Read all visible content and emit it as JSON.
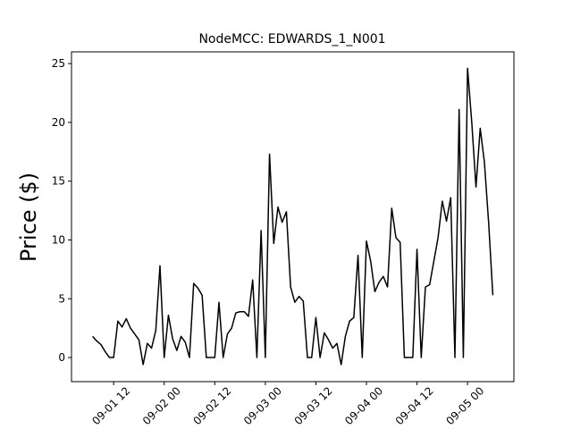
{
  "chart_data": {
    "type": "line",
    "title": "NodeMCC: EDWARDS_1_N001",
    "y_label": "Price ($)",
    "color": "#000000",
    "x": [
      "09-01 07",
      "09-01 08",
      "09-01 09",
      "09-01 10",
      "09-01 11",
      "09-01 12",
      "09-01 13",
      "09-01 14",
      "09-01 15",
      "09-01 16",
      "09-01 17",
      "09-01 18",
      "09-01 19",
      "09-01 20",
      "09-01 21",
      "09-01 22",
      "09-01 23",
      "09-02 00",
      "09-02 01",
      "09-02 02",
      "09-02 03",
      "09-02 04",
      "09-02 05",
      "09-02 06",
      "09-02 07",
      "09-02 08",
      "09-02 09",
      "09-02 10",
      "09-02 11",
      "09-02 12",
      "09-02 13",
      "09-02 14",
      "09-02 15",
      "09-02 16",
      "09-02 17",
      "09-02 18",
      "09-02 19",
      "09-02 20",
      "09-02 21",
      "09-02 22",
      "09-02 23",
      "09-03 00",
      "09-03 01",
      "09-03 02",
      "09-03 03",
      "09-03 04",
      "09-03 05",
      "09-03 06",
      "09-03 07",
      "09-03 08",
      "09-03 09",
      "09-03 10",
      "09-03 11",
      "09-03 12",
      "09-03 13",
      "09-03 14",
      "09-03 15",
      "09-03 16",
      "09-03 17",
      "09-03 18",
      "09-03 19",
      "09-03 20",
      "09-03 21",
      "09-03 22",
      "09-03 23",
      "09-04 00",
      "09-04 01",
      "09-04 02",
      "09-04 03",
      "09-04 04",
      "09-04 05",
      "09-04 06",
      "09-04 07",
      "09-04 08",
      "09-04 09",
      "09-04 10",
      "09-04 11",
      "09-04 12",
      "09-04 13",
      "09-04 14",
      "09-04 15",
      "09-04 16",
      "09-04 17",
      "09-04 18",
      "09-04 19",
      "09-04 20",
      "09-04 21",
      "09-04 22",
      "09-04 23",
      "09-05 00",
      "09-05 01",
      "09-05 02",
      "09-05 03",
      "09-05 04",
      "09-05 05",
      "09-05 06"
    ],
    "values": [
      1.8,
      1.4,
      1.1,
      0.5,
      0,
      0,
      3.1,
      2.6,
      3.3,
      2.5,
      2.0,
      1.5,
      -0.6,
      1.2,
      0.8,
      2.3,
      7.8,
      0,
      3.6,
      1.6,
      0.6,
      1.8,
      1.3,
      0,
      6.3,
      5.9,
      5.3,
      0,
      0,
      0,
      4.7,
      0,
      2.0,
      2.5,
      3.8,
      3.9,
      3.9,
      3.5,
      6.6,
      0,
      10.8,
      0,
      17.3,
      9.7,
      12.8,
      11.5,
      12.4,
      6.0,
      4.7,
      5.2,
      4.8,
      0,
      0,
      3.4,
      0,
      2.1,
      1.5,
      0.8,
      1.2,
      -0.6,
      1.8,
      3.1,
      3.4,
      8.7,
      0,
      9.9,
      8.2,
      5.6,
      6.4,
      6.9,
      6.0,
      12.7,
      10.2,
      9.8,
      0,
      0,
      0,
      9.2,
      0,
      6.0,
      6.2,
      8.2,
      10.2,
      13.3,
      11.6,
      13.6,
      0,
      21.1,
      0,
      24.6,
      20.0,
      14.5,
      19.5,
      16.6,
      11.5,
      5.3
    ],
    "xlim": [
      "09-01 02",
      "09-05 11"
    ],
    "xticks": [
      "09-01 12",
      "09-02 00",
      "09-02 12",
      "09-03 00",
      "09-03 12",
      "09-04 00",
      "09-04 12",
      "09-05 00"
    ],
    "ylim": [
      -2.05,
      26.0
    ],
    "yticks": [
      0,
      5,
      10,
      15,
      20,
      25
    ]
  }
}
